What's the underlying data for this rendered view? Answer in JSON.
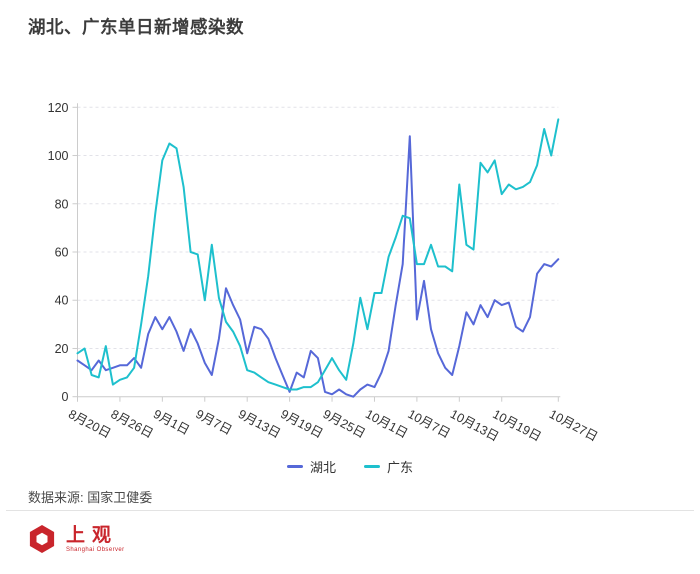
{
  "title": "湖北、广东单日新增感染数",
  "chart_data": {
    "type": "line",
    "title": "湖北、广东单日新增感染数",
    "xlabel": "",
    "ylabel": "",
    "ylim": [
      0,
      120
    ],
    "y_ticks": [
      0,
      20,
      40,
      60,
      80,
      100,
      120
    ],
    "grid": "horizontal-dashed",
    "legend_position": "bottom-center",
    "categories": [
      "8月20日",
      "8月21日",
      "8月22日",
      "8月23日",
      "8月24日",
      "8月25日",
      "8月26日",
      "8月27日",
      "8月28日",
      "8月29日",
      "8月30日",
      "8月31日",
      "9月1日",
      "9月2日",
      "9月3日",
      "9月4日",
      "9月5日",
      "9月6日",
      "9月7日",
      "9月8日",
      "9月9日",
      "9月10日",
      "9月11日",
      "9月12日",
      "9月13日",
      "9月14日",
      "9月15日",
      "9月16日",
      "9月17日",
      "9月18日",
      "9月19日",
      "9月20日",
      "9月21日",
      "9月22日",
      "9月23日",
      "9月24日",
      "9月25日",
      "9月26日",
      "9月27日",
      "9月28日",
      "9月29日",
      "9月30日",
      "10月1日",
      "10月2日",
      "10月3日",
      "10月4日",
      "10月5日",
      "10月6日",
      "10月7日",
      "10月8日",
      "10月9日",
      "10月10日",
      "10月11日",
      "10月12日",
      "10月13日",
      "10月14日",
      "10月15日",
      "10月16日",
      "10月17日",
      "10月18日",
      "10月19日",
      "10月20日",
      "10月21日",
      "10月22日",
      "10月23日",
      "10月24日",
      "10月25日",
      "10月26日",
      "10月27日"
    ],
    "tick_indices": [
      0,
      6,
      12,
      18,
      24,
      30,
      36,
      42,
      48,
      54,
      60,
      68
    ],
    "tick_labels": [
      "8月20日",
      "8月26日",
      "9月1日",
      "9月7日",
      "9月13日",
      "9月19日",
      "9月25日",
      "10月1日",
      "10月7日",
      "10月13日",
      "10月19日",
      "10月27日"
    ],
    "series": [
      {
        "name": "湖北",
        "color": "#5668d8",
        "values": [
          15,
          13,
          11,
          15,
          11,
          12,
          13,
          13,
          16,
          12,
          26,
          33,
          28,
          33,
          27,
          19,
          28,
          22,
          14,
          9,
          24,
          45,
          38,
          32,
          18,
          29,
          28,
          24,
          16,
          9,
          2,
          10,
          8,
          19,
          16,
          2,
          1,
          3,
          1,
          0,
          3,
          5,
          4,
          10,
          19,
          38,
          55,
          108,
          32,
          48,
          28,
          18,
          12,
          9,
          21,
          35,
          30,
          38,
          33,
          40,
          38,
          39,
          29,
          27,
          33,
          51,
          55,
          54,
          57
        ]
      },
      {
        "name": "广东",
        "color": "#1ec0cd",
        "values": [
          18,
          20,
          9,
          8,
          21,
          5,
          7,
          8,
          12,
          30,
          50,
          76,
          98,
          105,
          103,
          87,
          60,
          59,
          40,
          63,
          41,
          31,
          27,
          21,
          11,
          10,
          8,
          6,
          5,
          4,
          3,
          3,
          4,
          4,
          6,
          11,
          16,
          11,
          7,
          22,
          41,
          28,
          43,
          43,
          58,
          66,
          75,
          74,
          55,
          55,
          63,
          54,
          54,
          52,
          88,
          63,
          61,
          97,
          93,
          98,
          84,
          88,
          86,
          87,
          89,
          96,
          111,
          100,
          115
        ]
      }
    ]
  },
  "legend": {
    "items": [
      {
        "label": "湖北",
        "color": "#5668d8"
      },
      {
        "label": "广东",
        "color": "#1ec0cd"
      }
    ]
  },
  "footer": {
    "source": "数据来源: 国家卫健委"
  },
  "logo": {
    "text": "上观",
    "subtext": "Shanghai Observer",
    "color": "#c9252c"
  },
  "colors": {
    "axis": "#cccccc",
    "grid": "#e2e2e8",
    "axis_text": "#333333",
    "title_text": "#3c3c3c"
  }
}
